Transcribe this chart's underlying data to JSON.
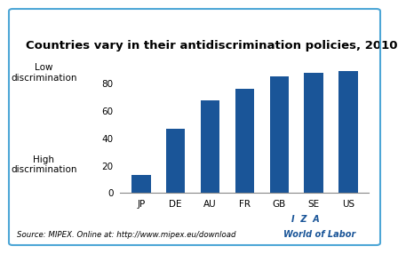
{
  "title": "Countries vary in their antidiscrimination policies, 2010",
  "categories": [
    "JP",
    "DE",
    "AU",
    "FR",
    "GB",
    "SE",
    "US"
  ],
  "values": [
    13,
    47,
    68,
    76,
    85,
    88,
    89
  ],
  "bar_color": "#1a5598",
  "ylim": [
    0,
    100
  ],
  "yticks": [
    0,
    20,
    40,
    60,
    80
  ],
  "ylabel_low": "Low\ndiscrimination",
  "ylabel_high": "High\ndiscrimination",
  "source_text": "Source: MIPEX. Online at: http://www.mipex.eu/download",
  "iza_text": "I  Z  A",
  "wol_text": "World of Labor",
  "border_color": "#4da6d6",
  "background_color": "#ffffff",
  "title_fontsize": 9.5,
  "tick_fontsize": 7.5,
  "ylabel_fontsize": 7.5,
  "source_fontsize": 6.2,
  "iza_fontsize": 7.0
}
